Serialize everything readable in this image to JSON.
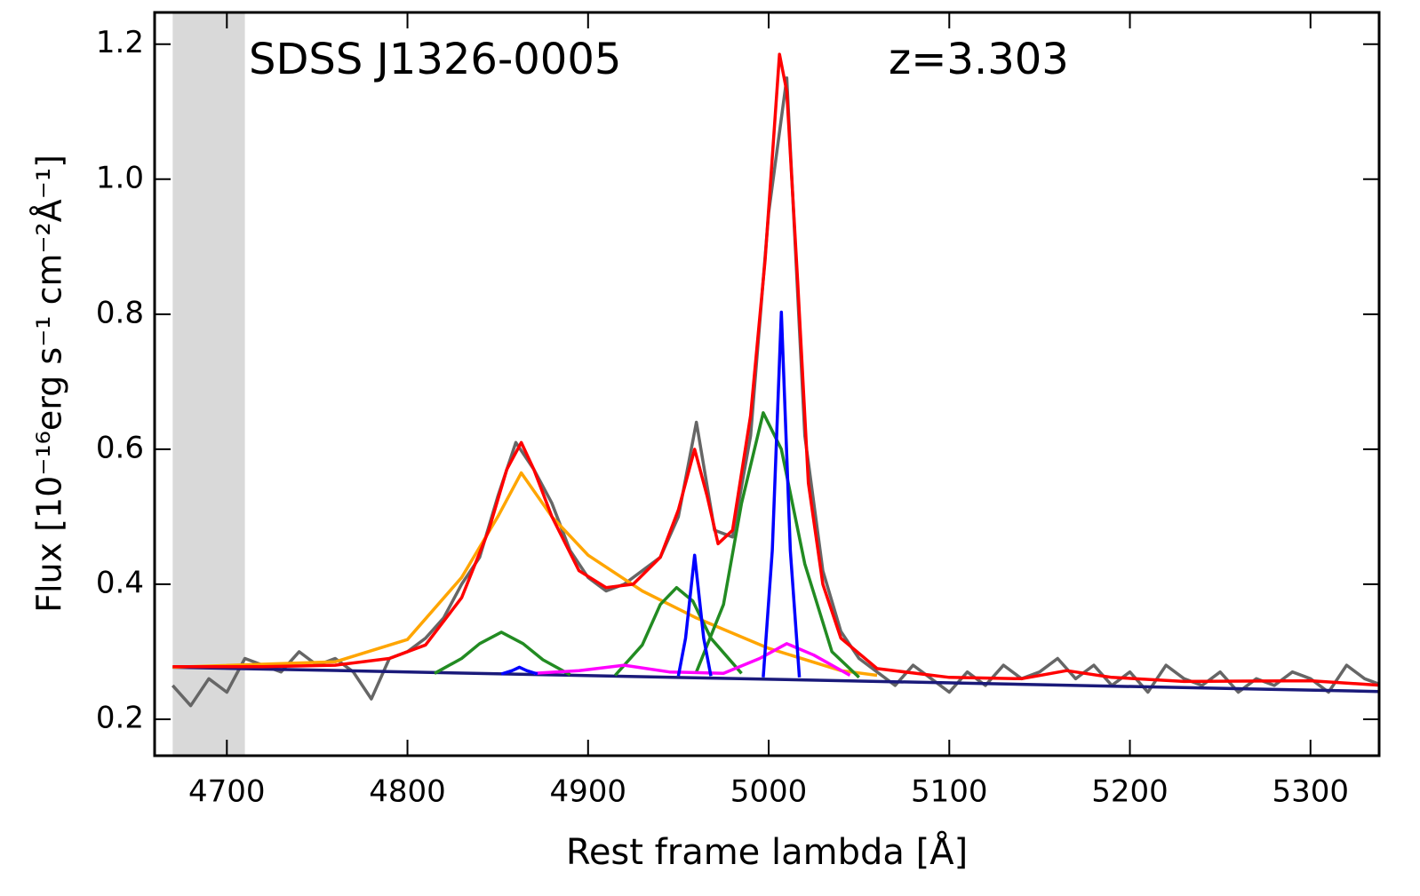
{
  "chart_data": {
    "type": "line",
    "annotations": [
      "SDSS J1326-0005",
      "z=3.303"
    ],
    "xlabel": "Rest frame lambda [Å]",
    "ylabel": "Flux [10⁻¹⁶erg s⁻¹ cm⁻²Å⁻¹]",
    "xlim": [
      4660,
      5338
    ],
    "ylim": [
      0.146,
      1.247
    ],
    "xticks": [
      4700,
      4800,
      4900,
      5000,
      5100,
      5200,
      5300
    ],
    "yticks": [
      0.2,
      0.4,
      0.6,
      0.8,
      {
        "value": 1,
        "label": "1.0"
      },
      1.2
    ],
    "shade": [
      4670,
      4710
    ],
    "shade_color": "#d9d9d9",
    "series": [
      {
        "color": "#666666",
        "x": [
          4670,
          4680,
          4690,
          4700,
          4710,
          4720,
          4730,
          4740,
          4750,
          4760,
          4770,
          4780,
          4790,
          4800,
          4810,
          4820,
          4830,
          4840,
          4850,
          4860,
          4870,
          4880,
          4890,
          4900,
          4910,
          4920,
          4930,
          4940,
          4950,
          4960,
          4970,
          4980,
          4990,
          5000,
          5010,
          5020,
          5030,
          5040,
          5050,
          5060,
          5070,
          5080,
          5090,
          5100,
          5110,
          5120,
          5130,
          5140,
          5150,
          5160,
          5170,
          5180,
          5190,
          5200,
          5210,
          5220,
          5230,
          5240,
          5250,
          5260,
          5270,
          5280,
          5290,
          5300,
          5310,
          5320,
          5330,
          5340
        ],
        "values": [
          0.25,
          0.22,
          0.26,
          0.24,
          0.29,
          0.28,
          0.27,
          0.3,
          0.28,
          0.29,
          0.27,
          0.23,
          0.29,
          0.3,
          0.32,
          0.35,
          0.4,
          0.44,
          0.53,
          0.61,
          0.57,
          0.52,
          0.45,
          0.41,
          0.39,
          0.4,
          0.42,
          0.44,
          0.5,
          0.64,
          0.48,
          0.47,
          0.62,
          0.95,
          1.15,
          0.62,
          0.42,
          0.33,
          0.29,
          0.27,
          0.25,
          0.28,
          0.26,
          0.24,
          0.27,
          0.25,
          0.28,
          0.26,
          0.27,
          0.29,
          0.26,
          0.28,
          0.25,
          0.27,
          0.24,
          0.28,
          0.26,
          0.25,
          0.27,
          0.24,
          0.26,
          0.25,
          0.27,
          0.26,
          0.24,
          0.28,
          0.26,
          0.25
        ]
      },
      {
        "color": "#1a1a7a",
        "x": [
          4670,
          5340
        ],
        "values": [
          0.277,
          0.241
        ]
      },
      {
        "color": "#ffa500",
        "x": [
          4670,
          4760,
          4800,
          4830,
          4850,
          4863,
          4880,
          4900,
          4930,
          4960,
          5000,
          5040,
          5060
        ],
        "values": [
          0.277,
          0.285,
          0.318,
          0.41,
          0.5,
          0.565,
          0.5,
          0.443,
          0.39,
          0.35,
          0.305,
          0.272,
          0.265
        ]
      },
      {
        "color": "#228b22",
        "x": [
          4815,
          4830,
          4840,
          4852,
          4864,
          4875,
          4890
        ],
        "values": [
          0.268,
          0.29,
          0.312,
          0.329,
          0.312,
          0.288,
          0.266
        ]
      },
      {
        "color": "#228b22",
        "x": [
          4915,
          4930,
          4940,
          4949,
          4958,
          4968,
          4985
        ],
        "values": [
          0.265,
          0.31,
          0.37,
          0.395,
          0.375,
          0.32,
          0.268
        ]
      },
      {
        "color": "#228b22",
        "x": [
          4960,
          4975,
          4985,
          4997,
          5007,
          5020,
          5035,
          5050
        ],
        "values": [
          0.27,
          0.37,
          0.52,
          0.654,
          0.6,
          0.43,
          0.3,
          0.262
        ]
      },
      {
        "color": "#ff00ff",
        "x": [
          4870,
          4895,
          4920,
          4945,
          4975,
          4995,
          5010,
          5025,
          5045
        ],
        "values": [
          0.268,
          0.272,
          0.28,
          0.27,
          0.268,
          0.29,
          0.312,
          0.295,
          0.265
        ]
      },
      {
        "color": "#0000ff",
        "x": [
          4852,
          4858,
          4862,
          4866,
          4872
        ],
        "values": [
          0.267,
          0.272,
          0.277,
          0.272,
          0.267
        ]
      },
      {
        "color": "#0000ff",
        "x": [
          4950,
          4954,
          4959,
          4964,
          4968
        ],
        "values": [
          0.264,
          0.32,
          0.443,
          0.32,
          0.264
        ]
      },
      {
        "color": "#0000ff",
        "x": [
          4997,
          5002,
          5007,
          5012,
          5017
        ],
        "values": [
          0.262,
          0.45,
          0.803,
          0.45,
          0.262
        ]
      },
      {
        "color": "#ff0000",
        "x": [
          4670,
          4720,
          4760,
          4790,
          4810,
          4830,
          4845,
          4855,
          4863,
          4870,
          4880,
          4895,
          4910,
          4925,
          4940,
          4950,
          4959,
          4966,
          4972,
          4980,
          4990,
          4998,
          5006,
          5010,
          5016,
          5022,
          5030,
          5040,
          5060,
          5100,
          5140,
          5165,
          5190,
          5230,
          5300,
          5340
        ],
        "values": [
          0.278,
          0.278,
          0.28,
          0.29,
          0.31,
          0.38,
          0.48,
          0.57,
          0.61,
          0.57,
          0.5,
          0.42,
          0.395,
          0.4,
          0.44,
          0.51,
          0.6,
          0.53,
          0.46,
          0.48,
          0.65,
          0.88,
          1.185,
          1.13,
          0.85,
          0.55,
          0.4,
          0.32,
          0.275,
          0.262,
          0.26,
          0.272,
          0.262,
          0.256,
          0.257,
          0.25
        ]
      }
    ]
  }
}
